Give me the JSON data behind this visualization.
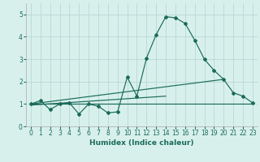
{
  "xlabel": "Humidex (Indice chaleur)",
  "bg_color": "#d8f0ec",
  "line_color": "#1a6b5a",
  "grid_color": "#b8d8d4",
  "xlim": [
    -0.5,
    23.5
  ],
  "ylim": [
    0,
    5.5
  ],
  "xtick_labels": [
    "0",
    "1",
    "2",
    "3",
    "4",
    "5",
    "6",
    "7",
    "8",
    "9",
    "10",
    "11",
    "12",
    "13",
    "14",
    "15",
    "16",
    "17",
    "18",
    "19",
    "20",
    "21",
    "22",
    "23"
  ],
  "xtick_positions": [
    0,
    1,
    2,
    3,
    4,
    5,
    6,
    7,
    8,
    9,
    10,
    11,
    12,
    13,
    14,
    15,
    16,
    17,
    18,
    19,
    20,
    21,
    22,
    23
  ],
  "yticks": [
    0,
    1,
    2,
    3,
    4,
    5
  ],
  "series1_x": [
    0,
    1,
    2,
    3,
    4,
    5,
    6,
    7,
    8,
    9,
    10,
    11,
    12,
    13,
    14,
    15,
    16,
    17,
    18,
    19,
    20,
    21,
    22,
    23
  ],
  "series1_y": [
    1.0,
    1.15,
    0.75,
    1.0,
    1.05,
    0.55,
    1.0,
    0.9,
    0.6,
    0.65,
    2.2,
    1.35,
    3.05,
    4.1,
    4.9,
    4.85,
    4.6,
    3.85,
    3.0,
    2.5,
    2.1,
    1.5,
    1.35,
    1.05
  ],
  "series2_x": [
    0,
    23
  ],
  "series2_y": [
    1.0,
    1.0
  ],
  "series3_x": [
    0,
    20
  ],
  "series3_y": [
    1.0,
    2.1
  ],
  "series4_x": [
    0,
    14
  ],
  "series4_y": [
    0.95,
    1.35
  ],
  "xlabel_fontsize": 6.5,
  "tick_fontsize": 5.5
}
